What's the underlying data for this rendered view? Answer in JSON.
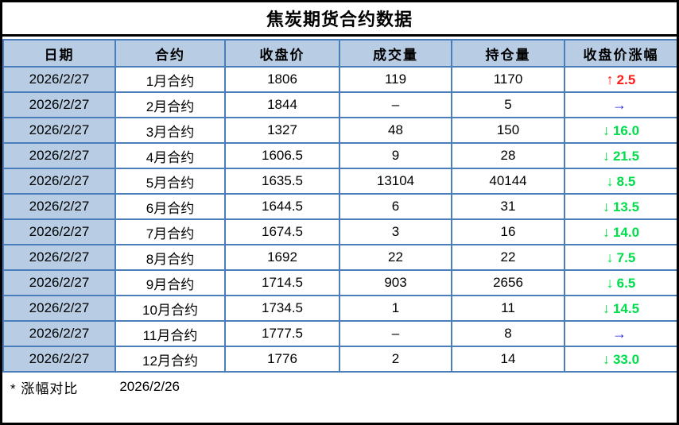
{
  "title": "焦炭期货合约数据",
  "colors": {
    "fill_light_blue": "#b8cce4",
    "grid_blue": "#4a7ebb",
    "frame_black": "#000000",
    "up_red": "#fe1b1b",
    "down_green": "#00dd4b",
    "flat_blue": "#2222dd"
  },
  "table": {
    "headers": [
      "日期",
      "合约",
      "收盘价",
      "成交量",
      "持仓量",
      "收盘价涨幅"
    ],
    "rows": [
      {
        "date": "2026/2/27",
        "contract": "1月合约",
        "close": "1806",
        "volume": "119",
        "open_interest": "1170",
        "change": {
          "dir": "up",
          "arrow": "↑",
          "value": "2.5",
          "color": "#fe1b1b"
        }
      },
      {
        "date": "2026/2/27",
        "contract": "2月合约",
        "close": "1844",
        "volume": "–",
        "open_interest": "5",
        "change": {
          "dir": "flat",
          "arrow": "→",
          "value": "",
          "color": "#2222dd"
        }
      },
      {
        "date": "2026/2/27",
        "contract": "3月合约",
        "close": "1327",
        "volume": "48",
        "open_interest": "150",
        "change": {
          "dir": "down",
          "arrow": "↓",
          "value": "16.0",
          "color": "#00dd4b"
        }
      },
      {
        "date": "2026/2/27",
        "contract": "4月合约",
        "close": "1606.5",
        "volume": "9",
        "open_interest": "28",
        "change": {
          "dir": "down",
          "arrow": "↓",
          "value": "21.5",
          "color": "#00dd4b"
        }
      },
      {
        "date": "2026/2/27",
        "contract": "5月合约",
        "close": "1635.5",
        "volume": "13104",
        "open_interest": "40144",
        "change": {
          "dir": "down",
          "arrow": "↓",
          "value": "8.5",
          "color": "#00dd4b"
        }
      },
      {
        "date": "2026/2/27",
        "contract": "6月合约",
        "close": "1644.5",
        "volume": "6",
        "open_interest": "31",
        "change": {
          "dir": "down",
          "arrow": "↓",
          "value": "13.5",
          "color": "#00dd4b"
        }
      },
      {
        "date": "2026/2/27",
        "contract": "7月合约",
        "close": "1674.5",
        "volume": "3",
        "open_interest": "16",
        "change": {
          "dir": "down",
          "arrow": "↓",
          "value": "14.0",
          "color": "#00dd4b"
        }
      },
      {
        "date": "2026/2/27",
        "contract": "8月合约",
        "close": "1692",
        "volume": "22",
        "open_interest": "22",
        "change": {
          "dir": "down",
          "arrow": "↓",
          "value": "7.5",
          "color": "#00dd4b"
        }
      },
      {
        "date": "2026/2/27",
        "contract": "9月合约",
        "close": "1714.5",
        "volume": "903",
        "open_interest": "2656",
        "change": {
          "dir": "down",
          "arrow": "↓",
          "value": "6.5",
          "color": "#00dd4b"
        }
      },
      {
        "date": "2026/2/27",
        "contract": "10月合约",
        "close": "1734.5",
        "volume": "1",
        "open_interest": "11",
        "change": {
          "dir": "down",
          "arrow": "↓",
          "value": "14.5",
          "color": "#00dd4b"
        }
      },
      {
        "date": "2026/2/27",
        "contract": "11月合约",
        "close": "1777.5",
        "volume": "–",
        "open_interest": "8",
        "change": {
          "dir": "flat",
          "arrow": "→",
          "value": "",
          "color": "#2222dd"
        }
      },
      {
        "date": "2026/2/27",
        "contract": "12月合约",
        "close": "1776",
        "volume": "2",
        "open_interest": "14",
        "change": {
          "dir": "down",
          "arrow": "↓",
          "value": "33.0",
          "color": "#00dd4b"
        }
      }
    ]
  },
  "footer": {
    "note": "*  涨幅对比",
    "compare_date": "2026/2/26"
  }
}
